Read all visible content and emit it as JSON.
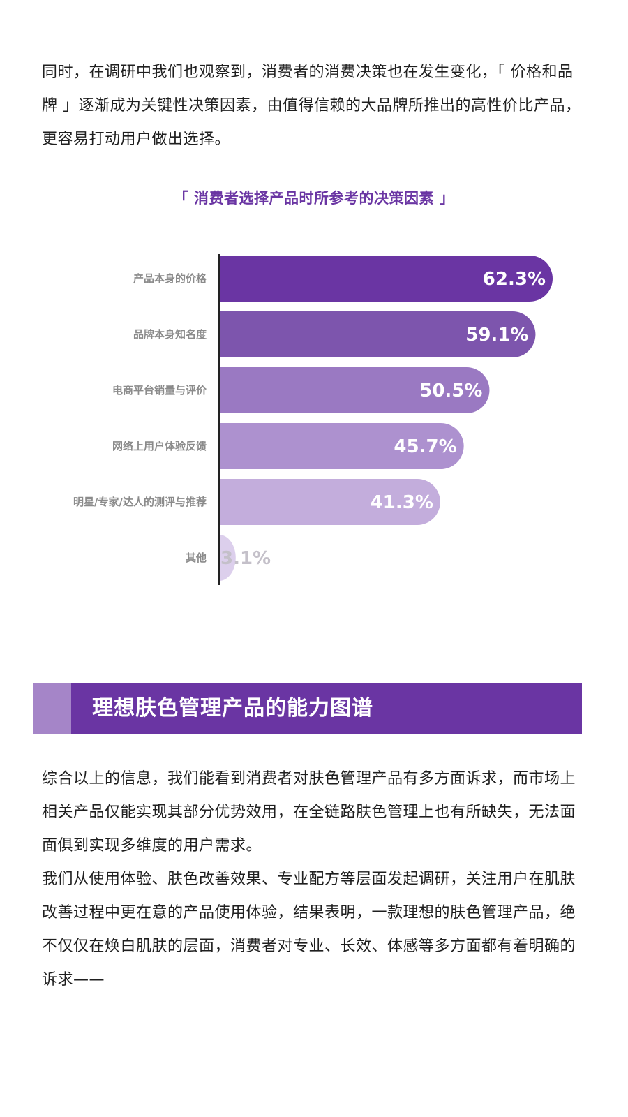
{
  "intro_paragraph": "同时，在调研中我们也观察到，消费者的消费决策也在发生变化，「 价格和品牌 」逐渐成为关键性决策因素，由值得信赖的大品牌所推出的高性价比产品，更容易打动用户做出选择。",
  "chart_data": {
    "type": "bar",
    "orientation": "horizontal",
    "title": "「 消费者选择产品时所参考的决策因素 」",
    "categories": [
      "产品本身的价格",
      "品牌本身知名度",
      "电商平台销量与评价",
      "网络上用户体验反馈",
      "明星/专家/达人的测评与推荐",
      "其他"
    ],
    "values": [
      62.3,
      59.1,
      50.5,
      45.7,
      41.3,
      3.1
    ],
    "value_labels": [
      "62.3%",
      "59.1%",
      "50.5%",
      "45.7%",
      "41.3%",
      "3.1%"
    ],
    "colors": [
      "#6a35a3",
      "#7d55ad",
      "#9a79c2",
      "#ad91cf",
      "#c3addc",
      "#dccfec"
    ],
    "value_label_colors": [
      "#ffffff",
      "#ffffff",
      "#ffffff",
      "#ffffff",
      "#ffffff",
      "#c4c0c9"
    ],
    "xlim": [
      0,
      62.3
    ],
    "xlabel": "",
    "ylabel": "",
    "grid": false,
    "legend": "none"
  },
  "section": {
    "title": "理想肤色管理产品的能力图谱"
  },
  "summary_paragraph_1": "综合以上的信息，我们能看到消费者对肤色管理产品有多方面诉求，而市场上相关产品仅能实现其部分优势效用，在全链路肤色管理上也有所缺失，无法面面俱到实现多维度的用户需求。",
  "summary_paragraph_2": "我们从使用体验、肤色改善效果、专业配方等层面发起调研，关注用户在肌肤改善过程中更在意的产品使用体验，结果表明，一款理想的肤色管理产品，绝不仅仅在焕白肌肤的层面，消费者对专业、长效、体感等多方面都有着明确的诉求——"
}
